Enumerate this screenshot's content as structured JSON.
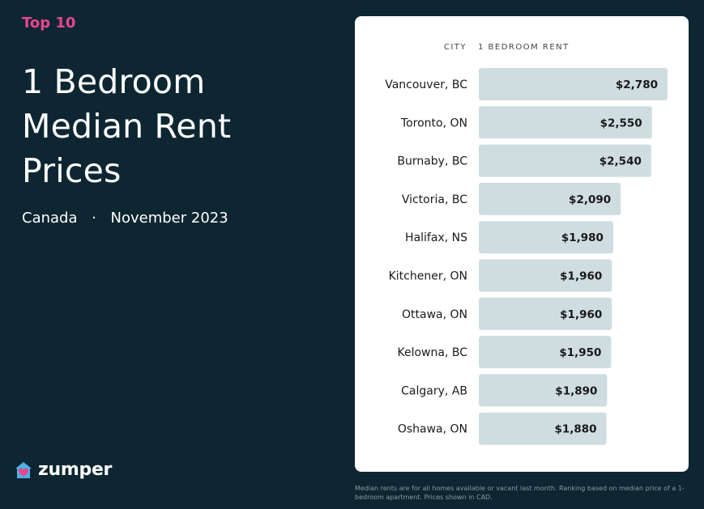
{
  "header": {
    "kicker": "Top 10",
    "title_lines": [
      "1 Bedroom",
      "Median Rent",
      "Prices"
    ],
    "country": "Canada",
    "separator": "·",
    "date": "November 2023"
  },
  "brand": {
    "name": "zumper",
    "accent": "#e8468f"
  },
  "footnote": "Median rents are for all homes available or vacant last month. Ranking based on median price of a 1-bedroom apartment. Prices shown in CAD.",
  "chart_data": {
    "type": "bar",
    "orientation": "horizontal",
    "column_headers": {
      "category": "CITY",
      "value": "1 BEDROOM RENT"
    },
    "categories": [
      "Vancouver, BC",
      "Toronto, ON",
      "Burnaby, BC",
      "Victoria, BC",
      "Halifax, NS",
      "Kitchener, ON",
      "Ottawa, ON",
      "Kelowna, BC",
      "Calgary, AB",
      "Oshawa, ON"
    ],
    "values": [
      2780,
      2550,
      2540,
      2090,
      1980,
      1960,
      1960,
      1950,
      1890,
      1880
    ],
    "value_labels": [
      "$2,780",
      "$2,550",
      "$2,540",
      "$2,090",
      "$1,980",
      "$1,960",
      "$1,960",
      "$1,950",
      "$1,890",
      "$1,880"
    ],
    "bar_color": "#cfdde1",
    "grid": false
  }
}
